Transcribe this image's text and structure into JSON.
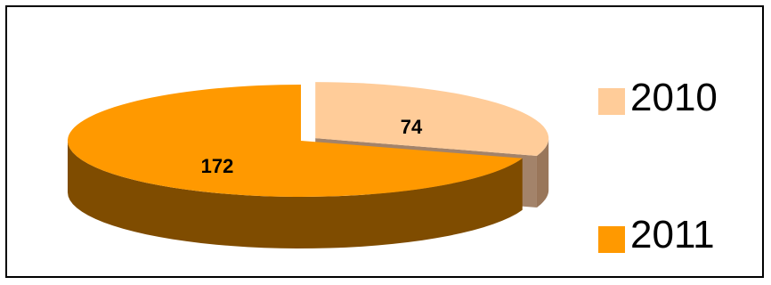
{
  "chart_data": {
    "type": "pie",
    "style": "3d-exploded",
    "title": "",
    "categories": [
      "2010",
      "2011"
    ],
    "values": [
      74,
      172
    ],
    "colors": {
      "2010": {
        "top": "#ffcc99",
        "side": "#99765a"
      },
      "2011": {
        "top": "#ff9900",
        "side": "#7f4c00"
      }
    },
    "data_labels": [
      "74",
      "172"
    ],
    "legend": {
      "placement": "right",
      "entries": [
        "2010",
        "2011"
      ]
    }
  }
}
